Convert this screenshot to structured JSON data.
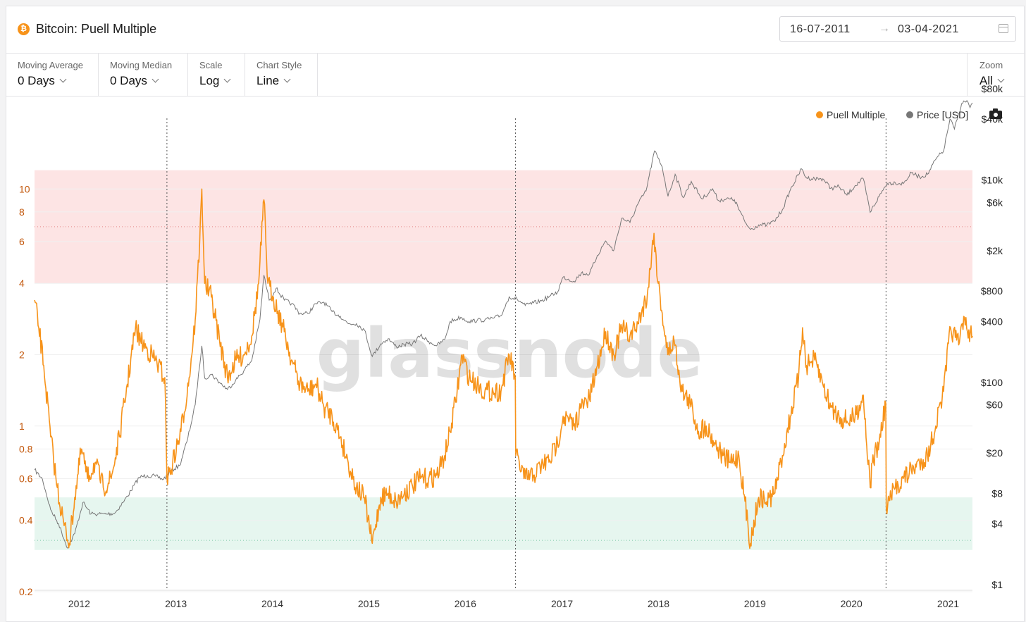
{
  "header": {
    "title": "Bitcoin: Puell Multiple",
    "coin_symbol": "₿",
    "date_start": "16-07-2011",
    "date_arrow": "→",
    "date_end": "03-04-2021"
  },
  "toolbar": {
    "moving_average": {
      "label": "Moving Average",
      "value": "0 Days"
    },
    "moving_median": {
      "label": "Moving Median",
      "value": "0 Days"
    },
    "scale": {
      "label": "Scale",
      "value": "Log"
    },
    "chart_style": {
      "label": "Chart Style",
      "value": "Line"
    },
    "zoom": {
      "label": "Zoom",
      "value": "All"
    }
  },
  "icons": {
    "calendar": "calendar-icon",
    "camera": "camera-icon",
    "chevron": "chevron-down-icon"
  },
  "colors": {
    "puell": "#f7931a",
    "price": "#777777",
    "high_band": "#fde4e4",
    "low_band": "#e6f6ef"
  },
  "chart_data": {
    "type": "line",
    "watermark": "glassnode",
    "x_range": [
      "2011-07-16",
      "2021-04-03"
    ],
    "x_ticks": [
      "2012",
      "2013",
      "2014",
      "2015",
      "2016",
      "2017",
      "2018",
      "2019",
      "2020",
      "2021"
    ],
    "y_left": {
      "scale": "log",
      "range": [
        0.2,
        20
      ],
      "ticks": [
        "10",
        "8",
        "6",
        "4",
        "2",
        "1",
        "0.8",
        "0.6",
        "0.4",
        "0.2"
      ]
    },
    "y_right": {
      "scale": "log",
      "unit": "USD",
      "range": [
        1,
        100000
      ],
      "ticks": [
        "$80k",
        "$40k",
        "$10k",
        "$6k",
        "$2k",
        "$800",
        "$400",
        "$100",
        "$60",
        "$20",
        "$8",
        "$4",
        "$1"
      ]
    },
    "bands": [
      {
        "name": "high",
        "from": 4,
        "to": 12
      },
      {
        "name": "low",
        "from": 0.3,
        "to": 0.5
      }
    ],
    "event_lines": [
      "2012-11-28",
      "2016-07-09",
      "2020-05-11"
    ],
    "legend_position": "top-right",
    "series": [
      {
        "name": "Puell Multiple",
        "axis": "left",
        "color": "#f7931a",
        "points": [
          [
            "2011-07-16",
            3.4
          ],
          [
            "2011-08-01",
            2.6
          ],
          [
            "2011-08-20",
            1.8
          ],
          [
            "2011-09-15",
            0.9
          ],
          [
            "2011-10-10",
            0.55
          ],
          [
            "2011-11-05",
            0.38
          ],
          [
            "2011-11-25",
            0.32
          ],
          [
            "2011-12-15",
            0.5
          ],
          [
            "2012-01-10",
            0.8
          ],
          [
            "2012-02-01",
            0.6
          ],
          [
            "2012-03-01",
            0.7
          ],
          [
            "2012-04-01",
            0.55
          ],
          [
            "2012-05-01",
            0.6
          ],
          [
            "2012-06-01",
            0.9
          ],
          [
            "2012-07-01",
            1.5
          ],
          [
            "2012-08-01",
            2.6
          ],
          [
            "2012-08-20",
            2.3
          ],
          [
            "2012-09-15",
            2.1
          ],
          [
            "2012-10-15",
            1.9
          ],
          [
            "2012-11-20",
            1.6
          ],
          [
            "2012-11-28",
            0.6
          ],
          [
            "2012-12-20",
            0.7
          ],
          [
            "2013-01-20",
            0.95
          ],
          [
            "2013-02-20",
            1.6
          ],
          [
            "2013-03-15",
            2.8
          ],
          [
            "2013-04-01",
            6.0
          ],
          [
            "2013-04-09",
            10.0
          ],
          [
            "2013-04-20",
            4.0
          ],
          [
            "2013-05-15",
            3.5
          ],
          [
            "2013-06-15",
            2.3
          ],
          [
            "2013-07-15",
            1.6
          ],
          [
            "2013-08-15",
            1.9
          ],
          [
            "2013-09-15",
            2.0
          ],
          [
            "2013-10-15",
            2.4
          ],
          [
            "2013-11-10",
            4.0
          ],
          [
            "2013-11-30",
            9.0
          ],
          [
            "2013-12-15",
            4.0
          ],
          [
            "2014-01-05",
            3.5
          ],
          [
            "2014-02-15",
            2.5
          ],
          [
            "2014-03-15",
            1.9
          ],
          [
            "2014-04-15",
            1.5
          ],
          [
            "2014-05-15",
            1.4
          ],
          [
            "2014-06-15",
            1.5
          ],
          [
            "2014-07-15",
            1.2
          ],
          [
            "2014-08-15",
            1.1
          ],
          [
            "2014-09-15",
            0.9
          ],
          [
            "2014-10-15",
            0.7
          ],
          [
            "2014-11-15",
            0.55
          ],
          [
            "2014-12-15",
            0.5
          ],
          [
            "2015-01-14",
            0.32
          ],
          [
            "2015-02-15",
            0.5
          ],
          [
            "2015-03-15",
            0.52
          ],
          [
            "2015-04-15",
            0.48
          ],
          [
            "2015-05-15",
            0.52
          ],
          [
            "2015-06-15",
            0.56
          ],
          [
            "2015-07-15",
            0.6
          ],
          [
            "2015-08-15",
            0.6
          ],
          [
            "2015-09-15",
            0.62
          ],
          [
            "2015-10-15",
            0.75
          ],
          [
            "2015-11-05",
            0.95
          ],
          [
            "2015-12-01",
            1.4
          ],
          [
            "2015-12-20",
            2.0
          ],
          [
            "2016-01-15",
            1.6
          ],
          [
            "2016-02-15",
            1.5
          ],
          [
            "2016-03-15",
            1.4
          ],
          [
            "2016-04-15",
            1.4
          ],
          [
            "2016-05-15",
            1.4
          ],
          [
            "2016-06-15",
            2.0
          ],
          [
            "2016-07-08",
            1.6
          ],
          [
            "2016-07-10",
            0.75
          ],
          [
            "2016-08-15",
            0.6
          ],
          [
            "2016-09-15",
            0.62
          ],
          [
            "2016-10-15",
            0.68
          ],
          [
            "2016-11-15",
            0.72
          ],
          [
            "2016-12-15",
            0.85
          ],
          [
            "2017-01-05",
            1.1
          ],
          [
            "2017-02-15",
            1.0
          ],
          [
            "2017-03-15",
            1.2
          ],
          [
            "2017-04-15",
            1.3
          ],
          [
            "2017-05-15",
            1.8
          ],
          [
            "2017-06-15",
            2.5
          ],
          [
            "2017-07-15",
            2.0
          ],
          [
            "2017-08-15",
            2.6
          ],
          [
            "2017-09-15",
            2.4
          ],
          [
            "2017-10-15",
            2.7
          ],
          [
            "2017-11-20",
            3.6
          ],
          [
            "2017-12-15",
            6.5
          ],
          [
            "2017-12-31",
            4.0
          ],
          [
            "2018-01-15",
            3.0
          ],
          [
            "2018-02-05",
            2.0
          ],
          [
            "2018-03-01",
            2.3
          ],
          [
            "2018-04-01",
            1.4
          ],
          [
            "2018-05-01",
            1.25
          ],
          [
            "2018-06-01",
            0.95
          ],
          [
            "2018-07-01",
            1.0
          ],
          [
            "2018-08-01",
            0.85
          ],
          [
            "2018-09-01",
            0.75
          ],
          [
            "2018-10-01",
            0.7
          ],
          [
            "2018-11-01",
            0.75
          ],
          [
            "2018-12-15",
            0.32
          ],
          [
            "2019-01-15",
            0.5
          ],
          [
            "2019-02-15",
            0.48
          ],
          [
            "2019-03-15",
            0.52
          ],
          [
            "2019-04-15",
            0.75
          ],
          [
            "2019-05-15",
            1.1
          ],
          [
            "2019-06-15",
            1.6
          ],
          [
            "2019-06-30",
            2.6
          ],
          [
            "2019-07-15",
            1.8
          ],
          [
            "2019-08-15",
            1.9
          ],
          [
            "2019-09-15",
            1.5
          ],
          [
            "2019-10-15",
            1.2
          ],
          [
            "2019-11-15",
            1.1
          ],
          [
            "2019-12-15",
            1.05
          ],
          [
            "2020-01-15",
            1.1
          ],
          [
            "2020-02-15",
            1.35
          ],
          [
            "2020-03-12",
            0.55
          ],
          [
            "2020-03-20",
            0.7
          ],
          [
            "2020-04-15",
            0.85
          ],
          [
            "2020-05-10",
            1.25
          ],
          [
            "2020-05-12",
            0.45
          ],
          [
            "2020-06-15",
            0.55
          ],
          [
            "2020-07-15",
            0.6
          ],
          [
            "2020-08-15",
            0.65
          ],
          [
            "2020-09-15",
            0.7
          ],
          [
            "2020-10-15",
            0.75
          ],
          [
            "2020-11-15",
            1.0
          ],
          [
            "2020-12-15",
            1.4
          ],
          [
            "2021-01-10",
            2.6
          ],
          [
            "2021-02-10",
            2.2
          ],
          [
            "2021-03-01",
            2.9
          ],
          [
            "2021-03-15",
            2.5
          ],
          [
            "2021-04-03",
            2.4
          ]
        ]
      },
      {
        "name": "Price [USD]",
        "axis": "right",
        "color": "#777777",
        "points": [
          [
            "2011-07-16",
            13.7
          ],
          [
            "2011-08-15",
            11
          ],
          [
            "2011-09-15",
            5.5
          ],
          [
            "2011-10-15",
            4
          ],
          [
            "2011-11-18",
            2.3
          ],
          [
            "2011-12-15",
            3.2
          ],
          [
            "2012-01-15",
            6.5
          ],
          [
            "2012-02-15",
            5
          ],
          [
            "2012-03-15",
            5
          ],
          [
            "2012-04-15",
            5
          ],
          [
            "2012-05-15",
            5.1
          ],
          [
            "2012-06-15",
            6.5
          ],
          [
            "2012-07-15",
            8.5
          ],
          [
            "2012-08-15",
            11.5
          ],
          [
            "2012-09-15",
            12
          ],
          [
            "2012-10-15",
            11.8
          ],
          [
            "2012-11-15",
            11
          ],
          [
            "2012-12-15",
            13.5
          ],
          [
            "2013-01-15",
            15
          ],
          [
            "2013-02-15",
            28
          ],
          [
            "2013-03-15",
            60
          ],
          [
            "2013-04-09",
            230
          ],
          [
            "2013-04-20",
            110
          ],
          [
            "2013-05-15",
            120
          ],
          [
            "2013-06-15",
            100
          ],
          [
            "2013-07-15",
            85
          ],
          [
            "2013-08-15",
            105
          ],
          [
            "2013-09-15",
            130
          ],
          [
            "2013-10-15",
            165
          ],
          [
            "2013-11-15",
            420
          ],
          [
            "2013-11-30",
            1150
          ],
          [
            "2013-12-20",
            650
          ],
          [
            "2014-01-15",
            850
          ],
          [
            "2014-02-15",
            650
          ],
          [
            "2014-03-15",
            600
          ],
          [
            "2014-04-15",
            480
          ],
          [
            "2014-05-15",
            480
          ],
          [
            "2014-06-15",
            600
          ],
          [
            "2014-07-15",
            620
          ],
          [
            "2014-08-15",
            500
          ],
          [
            "2014-09-15",
            450
          ],
          [
            "2014-10-15",
            380
          ],
          [
            "2014-11-15",
            380
          ],
          [
            "2014-12-15",
            330
          ],
          [
            "2015-01-14",
            180
          ],
          [
            "2015-02-15",
            240
          ],
          [
            "2015-03-15",
            270
          ],
          [
            "2015-04-15",
            225
          ],
          [
            "2015-05-15",
            237
          ],
          [
            "2015-06-15",
            240
          ],
          [
            "2015-07-15",
            290
          ],
          [
            "2015-08-15",
            255
          ],
          [
            "2015-09-15",
            230
          ],
          [
            "2015-10-15",
            265
          ],
          [
            "2015-11-05",
            400
          ],
          [
            "2015-12-15",
            440
          ],
          [
            "2016-01-15",
            400
          ],
          [
            "2016-02-15",
            410
          ],
          [
            "2016-03-15",
            415
          ],
          [
            "2016-04-15",
            430
          ],
          [
            "2016-05-15",
            455
          ],
          [
            "2016-06-15",
            700
          ],
          [
            "2016-07-15",
            665
          ],
          [
            "2016-08-15",
            575
          ],
          [
            "2016-09-15",
            610
          ],
          [
            "2016-10-15",
            640
          ],
          [
            "2016-11-15",
            710
          ],
          [
            "2016-12-15",
            780
          ],
          [
            "2017-01-05",
            1100
          ],
          [
            "2017-02-15",
            1000
          ],
          [
            "2017-03-15",
            1200
          ],
          [
            "2017-04-15",
            1180
          ],
          [
            "2017-05-15",
            1800
          ],
          [
            "2017-06-15",
            2500
          ],
          [
            "2017-07-15",
            2000
          ],
          [
            "2017-08-15",
            4200
          ],
          [
            "2017-09-15",
            3800
          ],
          [
            "2017-10-15",
            5800
          ],
          [
            "2017-11-15",
            7800
          ],
          [
            "2017-12-17",
            19400
          ],
          [
            "2018-01-15",
            13500
          ],
          [
            "2018-02-06",
            6900
          ],
          [
            "2018-03-05",
            11400
          ],
          [
            "2018-04-05",
            6700
          ],
          [
            "2018-05-05",
            9700
          ],
          [
            "2018-06-15",
            6500
          ],
          [
            "2018-07-25",
            8200
          ],
          [
            "2018-08-15",
            6300
          ],
          [
            "2018-09-15",
            6500
          ],
          [
            "2018-10-15",
            6400
          ],
          [
            "2018-11-25",
            3800
          ],
          [
            "2018-12-15",
            3250
          ],
          [
            "2019-01-15",
            3600
          ],
          [
            "2019-02-15",
            3600
          ],
          [
            "2019-03-15",
            3900
          ],
          [
            "2019-04-15",
            5100
          ],
          [
            "2019-05-15",
            8000
          ],
          [
            "2019-06-26",
            12900
          ],
          [
            "2019-07-15",
            10500
          ],
          [
            "2019-08-15",
            10300
          ],
          [
            "2019-09-15",
            10300
          ],
          [
            "2019-10-15",
            8300
          ],
          [
            "2019-11-15",
            8600
          ],
          [
            "2019-12-15",
            7100
          ],
          [
            "2020-01-15",
            8800
          ],
          [
            "2020-02-15",
            10300
          ],
          [
            "2020-03-12",
            4800
          ],
          [
            "2020-04-15",
            6900
          ],
          [
            "2020-05-15",
            9300
          ],
          [
            "2020-06-15",
            9400
          ],
          [
            "2020-07-15",
            9200
          ],
          [
            "2020-08-15",
            11800
          ],
          [
            "2020-09-15",
            10700
          ],
          [
            "2020-10-15",
            11400
          ],
          [
            "2020-11-15",
            16000
          ],
          [
            "2020-12-15",
            19500
          ],
          [
            "2021-01-08",
            40000
          ],
          [
            "2021-01-25",
            32000
          ],
          [
            "2021-02-21",
            57000
          ],
          [
            "2021-03-13",
            61000
          ],
          [
            "2021-03-25",
            52000
          ],
          [
            "2021-04-03",
            58000
          ]
        ]
      }
    ]
  }
}
